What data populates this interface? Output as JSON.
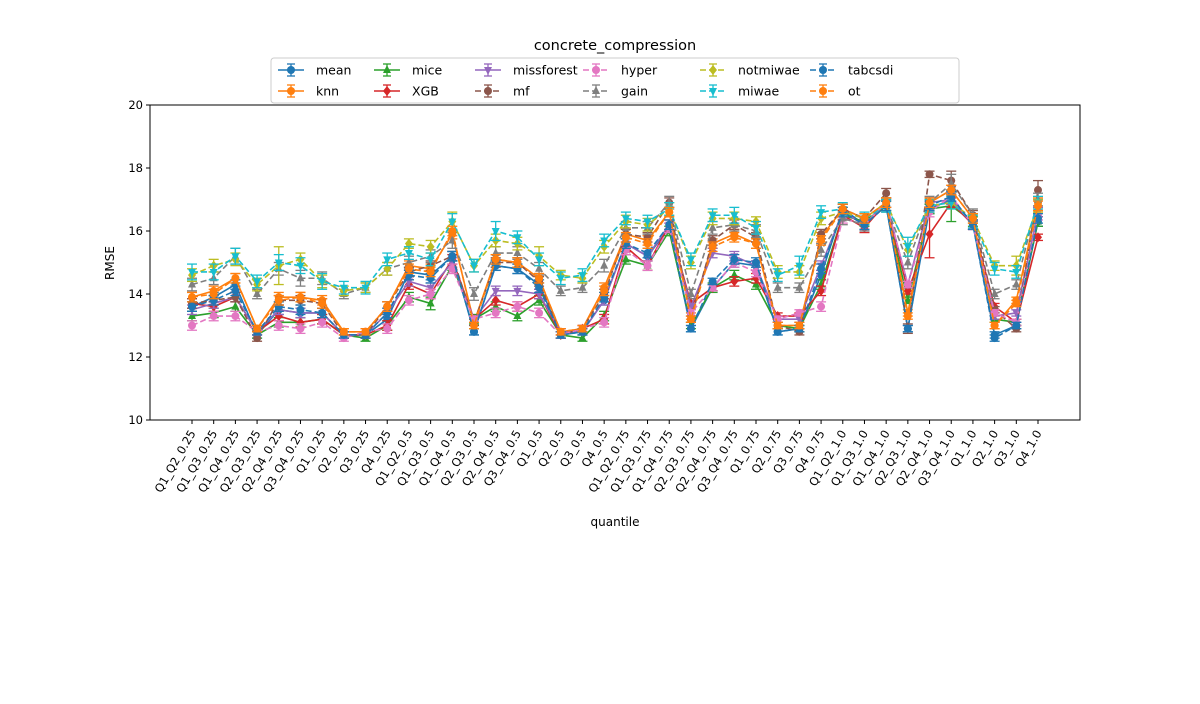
{
  "chart_data": {
    "type": "line",
    "title": "concrete_compression",
    "xlabel": "quantile",
    "ylabel": "RMSE",
    "ylim": [
      10,
      20
    ],
    "yticks": [
      10,
      12,
      14,
      16,
      18,
      20
    ],
    "grid": false,
    "legend_placement": "top-center",
    "categories": [
      "Q1_Q2_0.25",
      "Q1_Q3_0.25",
      "Q1_Q4_0.25",
      "Q2_Q3_0.25",
      "Q2_Q4_0.25",
      "Q3_Q4_0.25",
      "Q1_0.25",
      "Q2_0.25",
      "Q3_0.25",
      "Q4_0.25",
      "Q1_Q2_0.5",
      "Q1_Q3_0.5",
      "Q1_Q4_0.5",
      "Q2_Q3_0.5",
      "Q2_Q4_0.5",
      "Q3_Q4_0.5",
      "Q1_0.5",
      "Q2_0.5",
      "Q3_0.5",
      "Q4_0.5",
      "Q1_Q2_0.75",
      "Q1_Q3_0.75",
      "Q1_Q4_0.75",
      "Q2_Q3_0.75",
      "Q2_Q4_0.75",
      "Q3_Q4_0.75",
      "Q1_0.75",
      "Q2_0.75",
      "Q3_0.75",
      "Q4_0.75",
      "Q1_Q2_1.0",
      "Q1_Q3_1.0",
      "Q1_Q4_1.0",
      "Q2_Q3_1.0",
      "Q2_Q4_1.0",
      "Q3_Q4_1.0",
      "Q1_1.0",
      "Q2_1.0",
      "Q3_1.0",
      "Q4_1.0"
    ],
    "series": [
      {
        "name": "mean",
        "color": "#1f77b4",
        "marker": "circle",
        "dash": false,
        "values": [
          13.6,
          13.9,
          14.3,
          12.7,
          13.5,
          13.4,
          13.4,
          12.7,
          12.7,
          13.2,
          14.7,
          14.6,
          15.2,
          12.8,
          14.9,
          14.8,
          14.3,
          12.7,
          12.8,
          13.8,
          15.6,
          15.2,
          16.1,
          12.9,
          14.2,
          15.0,
          14.9,
          12.8,
          12.9,
          14.6,
          16.7,
          16.2,
          16.8,
          12.9,
          16.7,
          17.0,
          16.2,
          12.7,
          13.0,
          16.3
        ],
        "errors": [
          0.15,
          0.15,
          0.15,
          0.1,
          0.15,
          0.15,
          0.15,
          0.1,
          0.1,
          0.15,
          0.15,
          0.15,
          0.15,
          0.1,
          0.15,
          0.15,
          0.15,
          0.1,
          0.1,
          0.15,
          0.15,
          0.15,
          0.15,
          0.1,
          0.1,
          0.15,
          0.15,
          0.1,
          0.1,
          0.15,
          0.15,
          0.15,
          0.15,
          0.1,
          0.15,
          0.15,
          0.15,
          0.1,
          0.1,
          0.15
        ]
      },
      {
        "name": "knn",
        "color": "#ff7f0e",
        "marker": "circle",
        "dash": false,
        "values": [
          13.9,
          14.1,
          14.5,
          12.9,
          13.9,
          13.9,
          13.8,
          12.8,
          12.8,
          13.6,
          14.9,
          14.8,
          15.9,
          13.1,
          15.1,
          15.0,
          14.5,
          12.8,
          12.9,
          14.2,
          15.9,
          15.7,
          16.6,
          13.3,
          15.6,
          15.9,
          15.6,
          13.0,
          13.0,
          15.8,
          16.7,
          16.4,
          16.9,
          13.4,
          16.9,
          17.3,
          16.4,
          13.0,
          13.8,
          16.9
        ],
        "errors": [
          0.15,
          0.15,
          0.15,
          0.1,
          0.15,
          0.15,
          0.15,
          0.1,
          0.1,
          0.15,
          0.15,
          0.15,
          0.15,
          0.1,
          0.15,
          0.15,
          0.15,
          0.1,
          0.1,
          0.15,
          0.15,
          0.15,
          0.15,
          0.1,
          0.15,
          0.15,
          0.15,
          0.1,
          0.1,
          0.15,
          0.15,
          0.15,
          0.15,
          0.1,
          0.15,
          0.15,
          0.15,
          0.1,
          0.1,
          0.15
        ]
      },
      {
        "name": "mice",
        "color": "#2ca02c",
        "marker": "triangle",
        "dash": false,
        "values": [
          13.3,
          13.4,
          13.6,
          12.7,
          13.1,
          13.1,
          13.2,
          12.7,
          12.6,
          13.0,
          13.9,
          13.7,
          14.9,
          13.2,
          13.6,
          13.3,
          13.8,
          12.7,
          12.6,
          13.3,
          15.1,
          14.9,
          16.0,
          13.0,
          14.2,
          14.6,
          14.3,
          13.0,
          12.9,
          14.3,
          16.5,
          16.3,
          16.8,
          13.8,
          16.7,
          16.8,
          16.3,
          13.2,
          13.1,
          16.3
        ],
        "errors": [
          0.15,
          0.15,
          0.15,
          0.1,
          0.15,
          0.15,
          0.15,
          0.1,
          0.1,
          0.15,
          0.15,
          0.2,
          0.15,
          0.15,
          0.15,
          0.15,
          0.15,
          0.1,
          0.1,
          0.15,
          0.15,
          0.15,
          0.15,
          0.1,
          0.15,
          0.15,
          0.15,
          0.1,
          0.1,
          0.15,
          0.15,
          0.15,
          0.15,
          0.1,
          0.15,
          0.5,
          0.15,
          0.1,
          0.1,
          0.15
        ]
      },
      {
        "name": "XGB",
        "color": "#d62728",
        "marker": "diamond",
        "dash": false,
        "values": [
          13.7,
          13.6,
          13.9,
          12.8,
          13.3,
          13.1,
          13.2,
          12.7,
          12.7,
          13.0,
          14.3,
          14.0,
          15.1,
          13.2,
          13.8,
          13.6,
          14.0,
          12.7,
          12.9,
          13.2,
          15.5,
          14.9,
          16.2,
          13.7,
          14.2,
          14.4,
          14.5,
          13.3,
          13.3,
          14.1,
          16.5,
          16.1,
          16.9,
          14.1,
          15.9,
          16.9,
          16.2,
          13.6,
          13.1,
          15.8
        ],
        "errors": [
          0.15,
          0.15,
          0.15,
          0.1,
          0.15,
          0.15,
          0.15,
          0.1,
          0.1,
          0.15,
          0.15,
          0.15,
          0.15,
          0.1,
          0.15,
          0.15,
          0.15,
          0.1,
          0.1,
          0.15,
          0.15,
          0.15,
          0.15,
          0.15,
          0.1,
          0.15,
          0.15,
          0.1,
          0.1,
          0.15,
          0.15,
          0.15,
          0.15,
          0.1,
          0.75,
          0.15,
          0.15,
          0.1,
          0.1,
          0.1
        ]
      },
      {
        "name": "missforest",
        "color": "#9467bd",
        "marker": "tri-down",
        "dash": false,
        "values": [
          13.5,
          13.7,
          13.9,
          12.8,
          13.5,
          13.4,
          13.4,
          12.7,
          12.7,
          13.4,
          14.4,
          14.2,
          15.0,
          13.2,
          14.1,
          14.1,
          14.0,
          12.8,
          12.8,
          13.8,
          15.6,
          15.2,
          16.2,
          13.6,
          15.3,
          15.2,
          14.9,
          13.2,
          13.2,
          14.9,
          16.6,
          16.2,
          16.9,
          14.3,
          16.9,
          17.0,
          16.2,
          13.3,
          13.4,
          16.6
        ],
        "errors": [
          0.15,
          0.15,
          0.15,
          0.1,
          0.15,
          0.15,
          0.15,
          0.1,
          0.1,
          0.15,
          0.15,
          0.15,
          0.15,
          0.1,
          0.15,
          0.15,
          0.15,
          0.1,
          0.1,
          0.15,
          0.15,
          0.15,
          0.15,
          0.1,
          0.15,
          0.15,
          0.15,
          0.1,
          0.1,
          0.15,
          0.15,
          0.15,
          0.15,
          0.1,
          0.15,
          0.15,
          0.15,
          0.1,
          0.1,
          0.15
        ]
      },
      {
        "name": "mf",
        "color": "#8c564b",
        "marker": "circle",
        "dash": true,
        "values": [
          13.7,
          13.8,
          13.9,
          12.6,
          13.8,
          13.8,
          13.7,
          12.7,
          12.7,
          13.6,
          14.7,
          14.9,
          15.2,
          13.1,
          15.0,
          15.0,
          14.4,
          12.7,
          12.9,
          14.0,
          15.9,
          15.8,
          16.9,
          13.2,
          15.7,
          16.2,
          15.8,
          13.0,
          12.8,
          15.9,
          16.7,
          16.4,
          17.2,
          12.9,
          17.8,
          17.6,
          16.5,
          13.5,
          12.9,
          17.3
        ],
        "errors": [
          0.15,
          0.15,
          0.15,
          0.1,
          0.15,
          0.15,
          0.15,
          0.1,
          0.1,
          0.15,
          0.15,
          0.15,
          0.15,
          0.1,
          0.15,
          0.15,
          0.15,
          0.1,
          0.1,
          0.15,
          0.15,
          0.15,
          0.15,
          0.1,
          0.15,
          0.15,
          0.15,
          0.1,
          0.1,
          0.15,
          0.15,
          0.15,
          0.15,
          0.15,
          0.1,
          0.3,
          0.15,
          0.1,
          0.1,
          0.3
        ]
      },
      {
        "name": "hyper",
        "color": "#e377c2",
        "marker": "circle",
        "dash": true,
        "values": [
          13.0,
          13.3,
          13.3,
          12.8,
          13.0,
          12.9,
          13.1,
          12.6,
          12.8,
          12.9,
          13.8,
          14.0,
          14.8,
          13.2,
          13.4,
          13.6,
          13.4,
          12.7,
          12.9,
          13.1,
          15.4,
          14.9,
          16.1,
          13.4,
          14.2,
          15.0,
          14.7,
          13.2,
          13.4,
          13.6,
          16.4,
          16.2,
          16.9,
          14.3,
          16.6,
          17.1,
          16.2,
          13.4,
          13.1,
          16.5
        ],
        "errors": [
          0.15,
          0.15,
          0.15,
          0.1,
          0.15,
          0.15,
          0.15,
          0.1,
          0.1,
          0.15,
          0.15,
          0.15,
          0.15,
          0.1,
          0.15,
          0.15,
          0.15,
          0.1,
          0.1,
          0.15,
          0.15,
          0.15,
          0.15,
          0.1,
          0.1,
          0.15,
          0.15,
          0.1,
          0.1,
          0.15,
          0.15,
          0.15,
          0.15,
          0.1,
          0.15,
          0.15,
          0.15,
          0.1,
          0.1,
          0.15
        ]
      },
      {
        "name": "gain",
        "color": "#7f7f7f",
        "marker": "triangle",
        "dash": true,
        "values": [
          14.3,
          14.5,
          15.2,
          14.0,
          14.8,
          14.5,
          14.5,
          14.0,
          14.2,
          14.8,
          15.0,
          15.2,
          15.7,
          14.0,
          15.3,
          15.3,
          14.8,
          14.1,
          14.2,
          14.9,
          16.1,
          16.1,
          16.9,
          14.0,
          16.1,
          16.2,
          16.0,
          14.2,
          14.2,
          15.4,
          16.4,
          16.2,
          16.8,
          15.0,
          16.9,
          17.5,
          16.5,
          14.0,
          14.3,
          17.0
        ],
        "errors": [
          0.2,
          0.2,
          0.25,
          0.15,
          0.2,
          0.25,
          0.2,
          0.15,
          0.15,
          0.2,
          0.2,
          0.2,
          0.25,
          0.2,
          0.2,
          0.2,
          0.2,
          0.15,
          0.15,
          0.2,
          0.2,
          0.2,
          0.2,
          0.15,
          0.2,
          0.2,
          0.2,
          0.15,
          0.15,
          0.2,
          0.2,
          0.2,
          0.2,
          0.2,
          0.2,
          0.3,
          0.2,
          0.15,
          0.15,
          0.2
        ]
      },
      {
        "name": "notmiwae",
        "color": "#bcbd22",
        "marker": "diamond",
        "dash": true,
        "values": [
          14.6,
          14.9,
          15.1,
          14.3,
          14.9,
          15.1,
          14.4,
          14.1,
          14.2,
          14.8,
          15.6,
          15.5,
          16.3,
          14.9,
          15.7,
          15.6,
          15.2,
          14.6,
          14.5,
          15.5,
          16.3,
          16.2,
          16.7,
          15.0,
          16.4,
          16.4,
          16.3,
          14.7,
          14.7,
          16.4,
          16.6,
          16.4,
          16.9,
          15.4,
          16.8,
          16.9,
          16.4,
          14.9,
          14.9,
          16.8
        ],
        "errors": [
          0.2,
          0.2,
          0.2,
          0.2,
          0.6,
          0.2,
          0.2,
          0.15,
          0.15,
          0.2,
          0.15,
          0.2,
          0.3,
          0.2,
          0.2,
          0.2,
          0.3,
          0.15,
          0.15,
          0.2,
          0.2,
          0.2,
          0.2,
          0.2,
          0.2,
          0.2,
          0.15,
          0.2,
          0.2,
          0.2,
          0.15,
          0.15,
          0.15,
          0.2,
          0.2,
          0.2,
          0.15,
          0.15,
          0.3,
          0.2
        ]
      },
      {
        "name": "miwae",
        "color": "#17becf",
        "marker": "tri-down",
        "dash": true,
        "values": [
          14.7,
          14.7,
          15.2,
          14.4,
          15.0,
          14.9,
          14.4,
          14.2,
          14.2,
          15.1,
          15.3,
          15.1,
          16.3,
          14.9,
          16.0,
          15.8,
          15.1,
          14.5,
          14.6,
          15.7,
          16.4,
          16.3,
          16.7,
          15.1,
          16.5,
          16.5,
          16.1,
          14.6,
          14.9,
          16.6,
          16.7,
          16.4,
          16.8,
          15.5,
          16.8,
          16.9,
          16.3,
          14.8,
          14.7,
          16.9
        ],
        "errors": [
          0.25,
          0.25,
          0.25,
          0.2,
          0.25,
          0.25,
          0.25,
          0.2,
          0.2,
          0.2,
          0.2,
          0.2,
          0.25,
          0.2,
          0.3,
          0.2,
          0.2,
          0.2,
          0.2,
          0.2,
          0.2,
          0.2,
          0.2,
          0.2,
          0.2,
          0.25,
          0.2,
          0.2,
          0.3,
          0.2,
          0.2,
          0.2,
          0.2,
          0.3,
          0.2,
          0.2,
          0.2,
          0.2,
          0.2,
          0.2
        ]
      },
      {
        "name": "tabcsdi",
        "color": "#1f77b4",
        "marker": "circle",
        "dash": true,
        "values": [
          13.6,
          13.8,
          14.1,
          12.8,
          13.6,
          13.5,
          13.4,
          12.7,
          12.7,
          13.4,
          14.6,
          14.5,
          15.2,
          12.8,
          14.9,
          14.8,
          14.2,
          12.7,
          12.8,
          13.9,
          15.6,
          15.3,
          16.2,
          12.9,
          14.4,
          15.1,
          15.0,
          12.8,
          12.9,
          14.8,
          16.6,
          16.2,
          16.8,
          12.9,
          16.8,
          17.1,
          16.2,
          12.6,
          13.0,
          16.4
        ],
        "errors": [
          0.15,
          0.15,
          0.15,
          0.1,
          0.15,
          0.15,
          0.15,
          0.1,
          0.1,
          0.15,
          0.15,
          0.15,
          0.15,
          0.1,
          0.15,
          0.15,
          0.15,
          0.1,
          0.1,
          0.15,
          0.15,
          0.15,
          0.15,
          0.1,
          0.1,
          0.15,
          0.15,
          0.1,
          0.1,
          0.15,
          0.15,
          0.15,
          0.15,
          0.1,
          0.15,
          0.15,
          0.15,
          0.1,
          0.1,
          0.15
        ]
      },
      {
        "name": "ot",
        "color": "#ff7f0e",
        "marker": "circle",
        "dash": true,
        "values": [
          13.9,
          14.0,
          14.5,
          12.9,
          13.8,
          13.9,
          13.7,
          12.8,
          12.8,
          13.6,
          14.8,
          14.7,
          16.0,
          13.0,
          15.1,
          15.0,
          14.5,
          12.8,
          12.9,
          14.1,
          15.8,
          15.6,
          16.6,
          13.2,
          15.5,
          15.8,
          15.6,
          13.0,
          13.0,
          15.7,
          16.7,
          16.4,
          16.9,
          13.3,
          16.9,
          17.3,
          16.4,
          13.0,
          13.7,
          16.8
        ],
        "errors": [
          0.15,
          0.15,
          0.15,
          0.1,
          0.15,
          0.15,
          0.15,
          0.1,
          0.1,
          0.15,
          0.15,
          0.15,
          0.15,
          0.1,
          0.15,
          0.15,
          0.15,
          0.1,
          0.1,
          0.15,
          0.15,
          0.15,
          0.15,
          0.1,
          0.15,
          0.15,
          0.15,
          0.1,
          0.1,
          0.15,
          0.15,
          0.15,
          0.15,
          0.1,
          0.15,
          0.15,
          0.15,
          0.1,
          0.1,
          0.15
        ]
      }
    ]
  }
}
